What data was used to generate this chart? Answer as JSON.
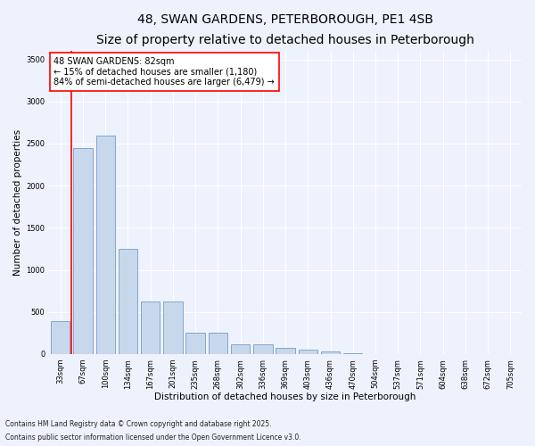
{
  "title1": "48, SWAN GARDENS, PETERBOROUGH, PE1 4SB",
  "title2": "Size of property relative to detached houses in Peterborough",
  "xlabel": "Distribution of detached houses by size in Peterborough",
  "ylabel": "Number of detached properties",
  "bar_labels": [
    "33sqm",
    "67sqm",
    "100sqm",
    "134sqm",
    "167sqm",
    "201sqm",
    "235sqm",
    "268sqm",
    "302sqm",
    "336sqm",
    "369sqm",
    "403sqm",
    "436sqm",
    "470sqm",
    "504sqm",
    "537sqm",
    "571sqm",
    "604sqm",
    "638sqm",
    "672sqm",
    "705sqm"
  ],
  "bar_values": [
    390,
    2450,
    2600,
    1250,
    620,
    620,
    250,
    250,
    120,
    120,
    70,
    55,
    30,
    10,
    0,
    0,
    0,
    0,
    0,
    0,
    0
  ],
  "bar_color": "#c8d8ec",
  "bar_edge_color": "#7fa8cc",
  "vline_x": 0.5,
  "vline_color": "red",
  "annotation_text": "48 SWAN GARDENS: 82sqm\n← 15% of detached houses are smaller (1,180)\n84% of semi-detached houses are larger (6,479) →",
  "annotation_box_color": "white",
  "annotation_box_edge_color": "red",
  "ylim": [
    0,
    3600
  ],
  "yticks": [
    0,
    500,
    1000,
    1500,
    2000,
    2500,
    3000,
    3500
  ],
  "bg_color": "#eef2fc",
  "plot_bg_color": "#eef2fc",
  "footnote1": "Contains HM Land Registry data © Crown copyright and database right 2025.",
  "footnote2": "Contains public sector information licensed under the Open Government Licence v3.0.",
  "title1_fontsize": 10,
  "title2_fontsize": 8.5,
  "xlabel_fontsize": 7.5,
  "ylabel_fontsize": 7.5,
  "tick_fontsize": 6,
  "annotation_fontsize": 7,
  "footnote_fontsize": 5.5,
  "grid_color": "#ffffff"
}
